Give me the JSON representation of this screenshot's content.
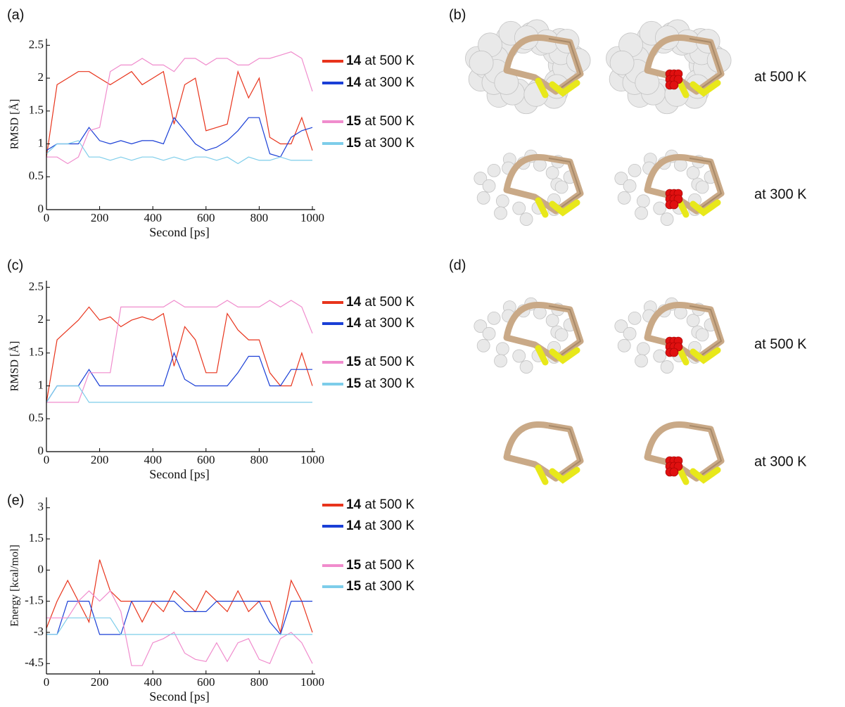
{
  "panel_labels": [
    "(a)",
    "(b)",
    "(c)",
    "(d)",
    "(e)"
  ],
  "structure_labels": [
    "at 500 K",
    "at 300 K",
    "at 500 K",
    "at 300 K"
  ],
  "chart_data": [
    {
      "type": "line",
      "xlabel": "Second [ps]",
      "ylabel": "RMSD [Å]",
      "x": [
        0,
        40,
        80,
        120,
        160,
        200,
        240,
        280,
        320,
        360,
        400,
        440,
        480,
        520,
        560,
        600,
        640,
        680,
        720,
        760,
        800,
        840,
        880,
        920,
        960,
        1000
      ],
      "xlim": [
        0,
        1000
      ],
      "xticks": [
        0,
        200,
        400,
        600,
        800,
        1000
      ],
      "ylim": [
        0,
        2.6
      ],
      "yticks": [
        0,
        0.5,
        1,
        1.5,
        2,
        2.5
      ],
      "series": [
        {
          "name": "14 at 500 K",
          "color": "#e8341c",
          "values": [
            0.8,
            1.9,
            2.0,
            2.1,
            2.1,
            2.0,
            1.9,
            2.0,
            2.1,
            1.9,
            2.0,
            2.1,
            1.3,
            1.9,
            2.0,
            1.2,
            1.25,
            1.3,
            2.1,
            1.7,
            2.0,
            1.1,
            1.0,
            1.0,
            1.4,
            0.9
          ]
        },
        {
          "name": "14 at 300 K",
          "color": "#1a3fd6",
          "values": [
            0.9,
            1.0,
            1.0,
            1.0,
            1.25,
            1.05,
            1.0,
            1.05,
            1.0,
            1.05,
            1.05,
            1.0,
            1.4,
            1.2,
            1.0,
            0.9,
            0.95,
            1.05,
            1.2,
            1.4,
            1.4,
            0.85,
            0.8,
            1.1,
            1.2,
            1.25
          ]
        },
        {
          "name": "15 at 500 K",
          "color": "#f08ccd",
          "values": [
            0.8,
            0.8,
            0.7,
            0.8,
            1.2,
            1.25,
            2.1,
            2.2,
            2.2,
            2.3,
            2.2,
            2.2,
            2.1,
            2.3,
            2.3,
            2.2,
            2.3,
            2.3,
            2.2,
            2.2,
            2.3,
            2.3,
            2.35,
            2.4,
            2.3,
            1.8
          ]
        },
        {
          "name": "15 at 300 K",
          "color": "#7dcdea",
          "values": [
            0.85,
            1.0,
            1.0,
            1.05,
            0.8,
            0.8,
            0.75,
            0.8,
            0.75,
            0.8,
            0.8,
            0.75,
            0.8,
            0.75,
            0.8,
            0.8,
            0.75,
            0.8,
            0.7,
            0.8,
            0.75,
            0.75,
            0.8,
            0.75,
            0.75,
            0.75
          ]
        }
      ]
    },
    {
      "type": "line",
      "xlabel": "Second [ps]",
      "ylabel": "RMSD [Å]",
      "x": [
        0,
        40,
        80,
        120,
        160,
        200,
        240,
        280,
        320,
        360,
        400,
        440,
        480,
        520,
        560,
        600,
        640,
        680,
        720,
        760,
        800,
        840,
        880,
        920,
        960,
        1000
      ],
      "xlim": [
        0,
        1000
      ],
      "xticks": [
        0,
        200,
        400,
        600,
        800,
        1000
      ],
      "ylim": [
        0,
        2.6
      ],
      "yticks": [
        0,
        0.5,
        1,
        1.5,
        2,
        2.5
      ],
      "series": [
        {
          "name": "14 at 500 K",
          "color": "#e8341c",
          "values": [
            0.75,
            1.7,
            1.85,
            2.0,
            2.2,
            2.0,
            2.05,
            1.9,
            2.0,
            2.05,
            2.0,
            2.1,
            1.3,
            1.9,
            1.7,
            1.2,
            1.2,
            2.1,
            1.85,
            1.7,
            1.7,
            1.2,
            1.0,
            1.0,
            1.5,
            1.0
          ]
        },
        {
          "name": "14 at 300 K",
          "color": "#1a3fd6",
          "values": [
            0.75,
            1.0,
            1.0,
            1.0,
            1.25,
            1.0,
            1.0,
            1.0,
            1.0,
            1.0,
            1.0,
            1.0,
            1.5,
            1.1,
            1.0,
            1.0,
            1.0,
            1.0,
            1.2,
            1.45,
            1.45,
            1.0,
            1.0,
            1.25,
            1.25,
            1.25
          ]
        },
        {
          "name": "15 at 500 K",
          "color": "#f08ccd",
          "values": [
            0.75,
            0.75,
            0.75,
            0.75,
            1.2,
            1.2,
            1.2,
            2.2,
            2.2,
            2.2,
            2.2,
            2.2,
            2.3,
            2.2,
            2.2,
            2.2,
            2.2,
            2.3,
            2.2,
            2.2,
            2.2,
            2.3,
            2.2,
            2.3,
            2.2,
            1.8
          ]
        },
        {
          "name": "15 at 300 K",
          "color": "#7dcdea",
          "values": [
            0.75,
            1.0,
            1.0,
            1.0,
            0.75,
            0.75,
            0.75,
            0.75,
            0.75,
            0.75,
            0.75,
            0.75,
            0.75,
            0.75,
            0.75,
            0.75,
            0.75,
            0.75,
            0.75,
            0.75,
            0.75,
            0.75,
            0.75,
            0.75,
            0.75,
            0.75
          ]
        }
      ]
    },
    {
      "type": "line",
      "xlabel": "Second [ps]",
      "ylabel": "Energy [kcal/mol]",
      "x": [
        0,
        40,
        80,
        120,
        160,
        200,
        240,
        280,
        320,
        360,
        400,
        440,
        480,
        520,
        560,
        600,
        640,
        680,
        720,
        760,
        800,
        840,
        880,
        920,
        960,
        1000
      ],
      "xlim": [
        0,
        1000
      ],
      "xticks": [
        0,
        200,
        400,
        600,
        800,
        1000
      ],
      "ylim": [
        -5,
        3.5
      ],
      "yticks": [
        -4.5,
        -3,
        -1.5,
        0,
        1.5,
        3
      ],
      "series": [
        {
          "name": "14 at 500 K",
          "color": "#e8341c",
          "values": [
            -2.8,
            -1.5,
            -0.5,
            -1.5,
            -2.5,
            0.5,
            -1,
            -1.5,
            -1.5,
            -2.5,
            -1.5,
            -2,
            -1,
            -1.5,
            -2,
            -1,
            -1.5,
            -2,
            -1,
            -2,
            -1.5,
            -1.5,
            -3,
            -0.5,
            -1.5,
            -3
          ]
        },
        {
          "name": "14 at 300 K",
          "color": "#1a3fd6",
          "values": [
            -3.1,
            -3.1,
            -1.5,
            -1.5,
            -1.5,
            -3.1,
            -3.1,
            -3.1,
            -1.5,
            -1.5,
            -1.5,
            -1.5,
            -1.5,
            -2,
            -2,
            -2,
            -1.5,
            -1.5,
            -1.5,
            -1.5,
            -1.5,
            -2.5,
            -3.1,
            -1.5,
            -1.5,
            -1.5
          ]
        },
        {
          "name": "15 at 500 K",
          "color": "#f08ccd",
          "values": [
            -2.3,
            -2.3,
            -2.3,
            -1.5,
            -1,
            -1.5,
            -1,
            -2,
            -4.6,
            -4.6,
            -3.5,
            -3.3,
            -3,
            -4,
            -4.3,
            -4.4,
            -3.5,
            -4.4,
            -3.5,
            -3.3,
            -4.3,
            -4.5,
            -3.3,
            -3,
            -3.5,
            -4.5
          ]
        },
        {
          "name": "15 at 300 K",
          "color": "#7dcdea",
          "values": [
            -3.1,
            -3.1,
            -2.3,
            -2.3,
            -2.3,
            -2.3,
            -2.3,
            -3.1,
            -3.1,
            -3.1,
            -3.1,
            -3.1,
            -3.1,
            -3.1,
            -3.1,
            -3.1,
            -3.1,
            -3.1,
            -3.1,
            -3.1,
            -3.1,
            -3.1,
            -3.1,
            -3.1,
            -3.1,
            -3.1
          ]
        }
      ]
    }
  ]
}
